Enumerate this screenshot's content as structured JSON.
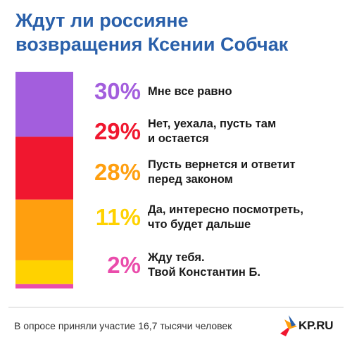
{
  "title_lines": [
    "Ждут ли россияне",
    "возвращения Ксении Собчак"
  ],
  "chart_data": {
    "type": "bar",
    "orientation": "stacked-vertical",
    "title": "Ждут ли россияне возвращения Ксении Собчак",
    "categories": [
      "Мне все равно",
      "Нет, уехала, пусть там и остается",
      "Пусть вернется и ответит перед законом",
      "Да, интересно посмотреть, что будет дальше",
      "Жду тебя. Твой Константин Б."
    ],
    "values": [
      30,
      29,
      28,
      11,
      2
    ],
    "value_labels": [
      "30%",
      "29%",
      "28%",
      "11%",
      "2%"
    ],
    "label_lines": [
      [
        "Мне все равно"
      ],
      [
        "Нет, уехала, пусть там",
        "и остается"
      ],
      [
        "Пусть вернется и ответит",
        "перед законом"
      ],
      [
        "Да, интересно посмотреть,",
        "что будет дальше"
      ],
      [
        "Жду тебя.",
        "Твой Константин Б."
      ]
    ],
    "colors": [
      "#a35edd",
      "#f0172f",
      "#ff9f0f",
      "#ffd200",
      "#ea4cab"
    ],
    "unit": "%"
  },
  "footnote": "В опросе приняли участие 16,7 тысячи человек",
  "logo": {
    "text": "KP.RU",
    "icon": "kp-bird-logo-icon"
  }
}
